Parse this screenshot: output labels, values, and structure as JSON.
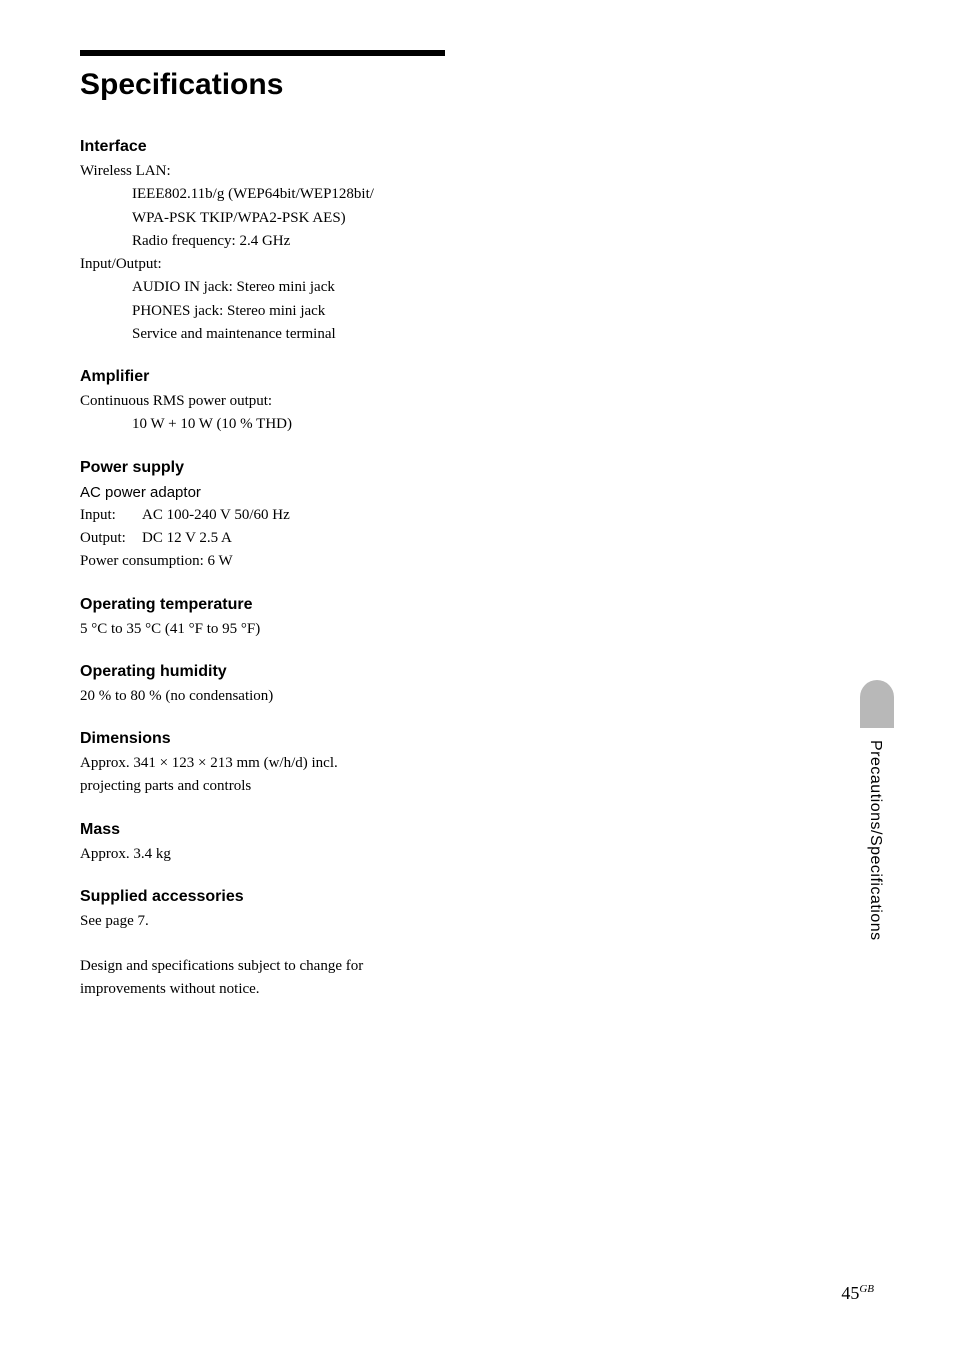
{
  "page": {
    "title": "Specifications",
    "number": "45",
    "number_suffix": "GB",
    "side_tab": "Precautions/Specifications"
  },
  "interface": {
    "heading": "Interface",
    "wlan_label": "Wireless LAN:",
    "wlan_line1": "IEEE802.11b/g (WEP64bit/WEP128bit/",
    "wlan_line2": "WPA-PSK TKIP/WPA2-PSK AES)",
    "wlan_line3": "Radio frequency: 2.4 GHz",
    "io_label": "Input/Output:",
    "io_line1": "AUDIO IN jack: Stereo mini jack",
    "io_line2": "PHONES jack: Stereo mini jack",
    "io_line3": "Service and maintenance terminal"
  },
  "amplifier": {
    "heading": "Amplifier",
    "line1": "Continuous RMS power output:",
    "line2": "10 W + 10 W (10 % THD)"
  },
  "power": {
    "heading": "Power supply",
    "adaptor": "AC power adaptor",
    "input_key": "Input:",
    "input_val": "AC 100-240 V 50/60 Hz",
    "output_key": "Output:",
    "output_val": "DC 12 V 2.5 A",
    "consumption": "Power consumption: 6 W"
  },
  "temperature": {
    "heading": "Operating temperature",
    "value": "5 °C to 35 °C (41 °F to 95 °F)"
  },
  "humidity": {
    "heading": "Operating humidity",
    "value": "20 % to 80 % (no condensation)"
  },
  "dimensions": {
    "heading": "Dimensions",
    "line1": "Approx. 341 × 123 × 213 mm (w/h/d) incl.",
    "line2": "projecting parts and controls"
  },
  "mass": {
    "heading": "Mass",
    "value": "Approx. 3.4 kg"
  },
  "accessories": {
    "heading": "Supplied accessories",
    "value": "See page 7."
  },
  "note": {
    "line1": "Design and specifications subject to change for",
    "line2": "improvements without notice."
  }
}
